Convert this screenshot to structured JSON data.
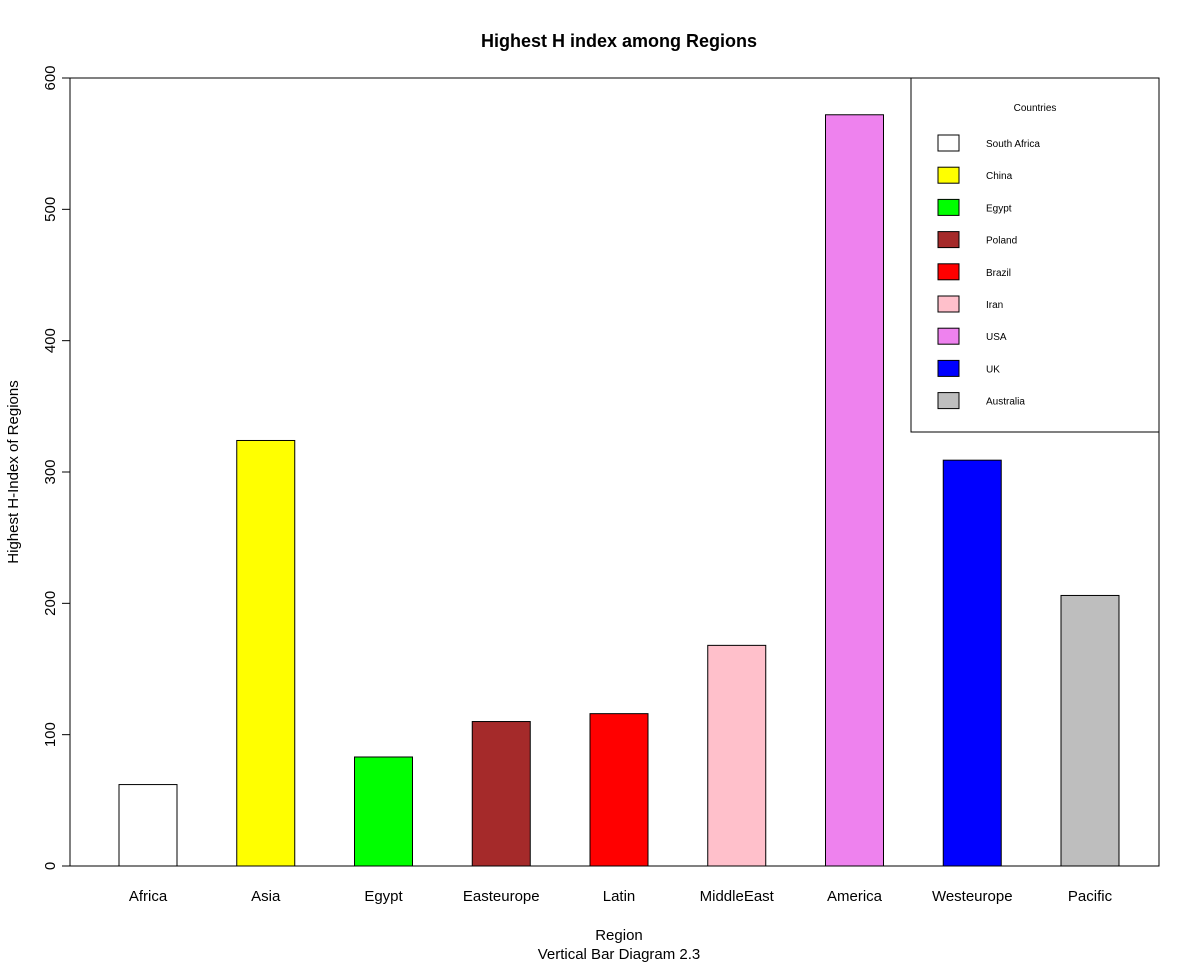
{
  "chart_data": {
    "type": "bar",
    "title": "Highest H index among Regions",
    "xlabel": "Region",
    "sub": "Vertical Bar Diagram 2.3",
    "ylabel": "Highest H-Index of Regions",
    "ylim": [
      0,
      600
    ],
    "yticks": [
      0,
      100,
      200,
      300,
      400,
      500,
      600
    ],
    "grid": false,
    "categories": [
      "Africa",
      "Asia",
      "Egypt",
      "Easteurope",
      "Latin",
      "MiddleEast",
      "America",
      "Westeurope",
      "Pacific"
    ],
    "values": [
      62,
      324,
      83,
      110,
      116,
      168,
      572,
      309,
      206
    ],
    "colors": [
      "#FFFFFF",
      "#FFFF00",
      "#00FF00",
      "#A52A2A",
      "#FF0000",
      "#FFC0CB",
      "#EE82EE",
      "#0000FF",
      "#BEBEBE"
    ],
    "legend": {
      "title": "Countries",
      "position": "top-right",
      "items": [
        {
          "label": "South Africa",
          "color": "#FFFFFF"
        },
        {
          "label": "China",
          "color": "#FFFF00"
        },
        {
          "label": "Egypt",
          "color": "#00FF00"
        },
        {
          "label": "Poland",
          "color": "#A52A2A"
        },
        {
          "label": "Brazil",
          "color": "#FF0000"
        },
        {
          "label": "Iran",
          "color": "#FFC0CB"
        },
        {
          "label": "USA",
          "color": "#EE82EE"
        },
        {
          "label": "UK",
          "color": "#0000FF"
        },
        {
          "label": "Australia",
          "color": "#BEBEBE"
        }
      ]
    }
  }
}
